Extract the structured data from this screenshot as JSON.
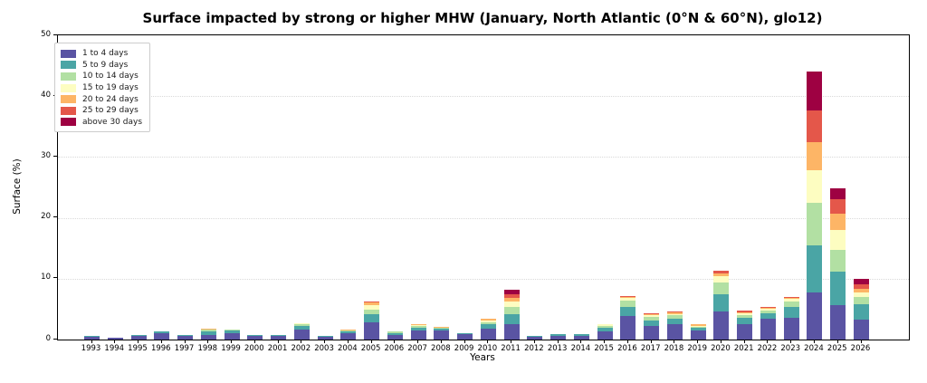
{
  "chart_data": {
    "type": "bar",
    "stacked": true,
    "title": "Surface impacted by strong or higher MHW (January, North Atlantic (0°N & 60°N), glo12)",
    "xlabel": "Years",
    "ylabel": "Surface (%)",
    "ylim": [
      0,
      50
    ],
    "y_ticks": [
      0,
      10,
      20,
      30,
      40,
      50
    ],
    "grid": "horizontal dotted lines at 10, 20, 30, 40",
    "legend_position": "upper left",
    "categories": [
      "1993",
      "1994",
      "1995",
      "1996",
      "1997",
      "1998",
      "1999",
      "2000",
      "2001",
      "2002",
      "2003",
      "2004",
      "2005",
      "2006",
      "2007",
      "2008",
      "2009",
      "2010",
      "2011",
      "2012",
      "2013",
      "2014",
      "2015",
      "2016",
      "2017",
      "2018",
      "2019",
      "2020",
      "2021",
      "2022",
      "2023",
      "2024",
      "2025",
      "2026"
    ],
    "series": [
      {
        "name": "1 to 4 days",
        "color": "#5a54a3",
        "values": [
          0.5,
          0.3,
          0.6,
          1.1,
          0.55,
          0.7,
          1.0,
          0.6,
          0.6,
          1.7,
          0.45,
          1.1,
          2.8,
          0.75,
          1.5,
          1.45,
          0.85,
          1.8,
          2.6,
          0.45,
          0.65,
          0.6,
          1.4,
          3.9,
          2.2,
          2.6,
          1.5,
          4.6,
          2.5,
          3.4,
          3.5,
          7.7,
          5.6,
          3.3
        ]
      },
      {
        "name": "5 to 9 days",
        "color": "#4aa5a5",
        "values": [
          0.1,
          0,
          0.1,
          0.2,
          0.2,
          0.7,
          0.45,
          0.2,
          0.2,
          0.5,
          0.1,
          0.3,
          1.4,
          0.35,
          0.5,
          0.4,
          0.25,
          0.7,
          1.6,
          0.1,
          0.25,
          0.3,
          0.5,
          1.5,
          1.0,
          0.8,
          0.4,
          2.9,
          1.0,
          0.9,
          1.9,
          7.8,
          5.6,
          2.5
        ]
      },
      {
        "name": "10 to 14 days",
        "color": "#b2e0a3",
        "values": [
          0,
          0,
          0,
          0,
          0,
          0.25,
          0.15,
          0,
          0,
          0.3,
          0,
          0.1,
          0.75,
          0.2,
          0.2,
          0.15,
          0,
          0.4,
          1.1,
          0,
          0,
          0,
          0.3,
          1.0,
          0.5,
          0.55,
          0.25,
          1.9,
          0.5,
          0.5,
          0.9,
          7.0,
          3.6,
          1.2
        ]
      },
      {
        "name": "15 to 19 days",
        "color": "#fdfdc1",
        "values": [
          0,
          0,
          0,
          0,
          0,
          0,
          0,
          0,
          0,
          0.1,
          0,
          0,
          0.75,
          0,
          0.15,
          0,
          0,
          0.3,
          0.9,
          0,
          0,
          0,
          0.3,
          0.45,
          0.25,
          0.25,
          0.15,
          1.0,
          0.3,
          0.3,
          0.4,
          5.3,
          3.2,
          0.7
        ]
      },
      {
        "name": "20 to 24 days",
        "color": "#fdb566",
        "values": [
          0,
          0,
          0,
          0,
          0,
          0.2,
          0,
          0,
          0,
          0,
          0,
          0.1,
          0.4,
          0,
          0.15,
          0.1,
          0,
          0.2,
          0.6,
          0,
          0,
          0,
          0,
          0.2,
          0.2,
          0.2,
          0.2,
          0.45,
          0.2,
          0.2,
          0.2,
          4.7,
          2.7,
          0.6
        ]
      },
      {
        "name": "25 to 29 days",
        "color": "#e4574a",
        "values": [
          0,
          0,
          0,
          0,
          0,
          0,
          0,
          0,
          0,
          0,
          0,
          0,
          0.2,
          0,
          0,
          0,
          0,
          0,
          0.6,
          0,
          0,
          0,
          0,
          0.15,
          0.15,
          0.2,
          0,
          0.4,
          0.2,
          0.1,
          0.1,
          5.1,
          2.3,
          0.8
        ]
      },
      {
        "name": "above 30 days",
        "color": "#9e0142",
        "values": [
          0,
          0,
          0,
          0,
          0,
          0,
          0,
          0,
          0,
          0,
          0,
          0,
          0,
          0,
          0,
          0,
          0,
          0,
          0.8,
          0,
          0,
          0,
          0,
          0,
          0,
          0,
          0,
          0,
          0,
          0,
          0,
          6.4,
          1.8,
          0.9
        ]
      }
    ]
  }
}
